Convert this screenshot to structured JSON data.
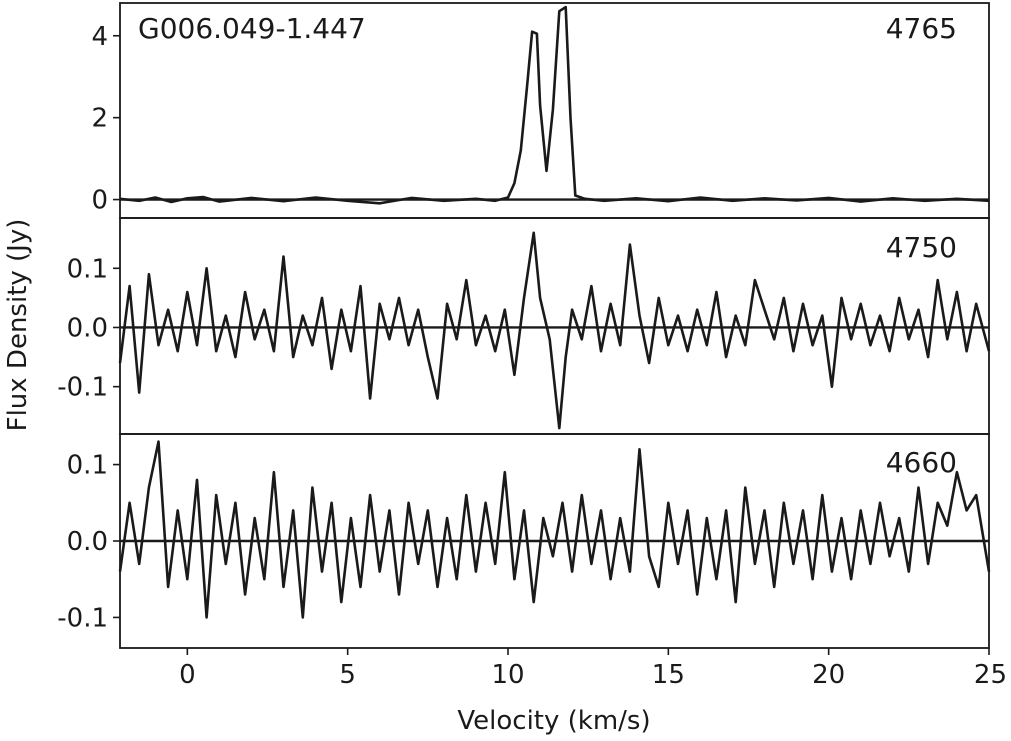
{
  "chart_data": {
    "type": "line",
    "source_name": "G006.049-1.447",
    "xlabel": "Velocity (km/s)",
    "ylabel": "Flux Density (Jy)",
    "xlim": [
      -2.1,
      25
    ],
    "x_ticks": [
      0,
      5,
      10,
      15,
      20,
      25
    ],
    "x_tick_labels": [
      "0",
      "5",
      "10",
      "15",
      "20",
      "25"
    ],
    "line_color": "#1a1a1a",
    "grid": false,
    "panels": [
      {
        "label": "4765",
        "ylim": [
          -0.45,
          4.8
        ],
        "y_ticks": [
          0,
          2,
          4
        ],
        "y_tick_labels": [
          "0",
          "2",
          "4"
        ],
        "x": [
          -2.1,
          -1.5,
          -1.0,
          -0.5,
          0.0,
          0.5,
          1.0,
          2.0,
          3.0,
          4.0,
          5.0,
          6.0,
          7.0,
          8.0,
          9.0,
          9.6,
          10.0,
          10.2,
          10.4,
          10.6,
          10.75,
          10.9,
          11.0,
          11.2,
          11.4,
          11.6,
          11.8,
          11.95,
          12.1,
          12.4,
          13.0,
          14.0,
          15.0,
          16.0,
          17.0,
          18.0,
          19.0,
          20.0,
          21.0,
          22.0,
          23.0,
          24.0,
          25.0
        ],
        "y": [
          0.02,
          -0.03,
          0.05,
          -0.06,
          0.03,
          0.06,
          -0.05,
          0.04,
          -0.04,
          0.05,
          -0.03,
          -0.09,
          0.04,
          -0.03,
          0.02,
          -0.03,
          0.05,
          0.4,
          1.2,
          2.8,
          4.1,
          4.05,
          2.3,
          0.7,
          2.2,
          4.6,
          4.7,
          2.0,
          0.1,
          0.02,
          -0.03,
          0.03,
          -0.04,
          0.05,
          -0.03,
          0.03,
          -0.02,
          0.04,
          -0.05,
          0.03,
          -0.03,
          0.02,
          -0.03
        ]
      },
      {
        "label": "4750",
        "ylim": [
          -0.18,
          0.185
        ],
        "y_ticks": [
          0.1,
          0.0,
          -0.1
        ],
        "y_tick_labels": [
          "0.1",
          "0.0",
          "-0.1"
        ],
        "x": [
          -2.1,
          -1.8,
          -1.5,
          -1.2,
          -0.9,
          -0.6,
          -0.3,
          0.0,
          0.3,
          0.6,
          0.9,
          1.2,
          1.5,
          1.8,
          2.1,
          2.4,
          2.7,
          3.0,
          3.3,
          3.6,
          3.9,
          4.2,
          4.5,
          4.8,
          5.1,
          5.4,
          5.7,
          6.0,
          6.3,
          6.6,
          6.9,
          7.2,
          7.5,
          7.8,
          8.1,
          8.4,
          8.7,
          9.0,
          9.3,
          9.6,
          9.9,
          10.2,
          10.5,
          10.8,
          11.0,
          11.3,
          11.6,
          11.8,
          12.0,
          12.3,
          12.6,
          12.9,
          13.2,
          13.5,
          13.8,
          14.1,
          14.4,
          14.7,
          15.0,
          15.3,
          15.6,
          15.9,
          16.2,
          16.5,
          16.8,
          17.1,
          17.4,
          17.7,
          18.0,
          18.3,
          18.6,
          18.9,
          19.2,
          19.5,
          19.8,
          20.1,
          20.4,
          20.7,
          21.0,
          21.3,
          21.6,
          21.9,
          22.2,
          22.5,
          22.8,
          23.1,
          23.4,
          23.7,
          24.0,
          24.3,
          24.6,
          25.0
        ],
        "y": [
          -0.06,
          0.07,
          -0.11,
          0.09,
          -0.03,
          0.03,
          -0.04,
          0.06,
          -0.03,
          0.1,
          -0.04,
          0.02,
          -0.05,
          0.06,
          -0.02,
          0.03,
          -0.04,
          0.12,
          -0.05,
          0.02,
          -0.03,
          0.05,
          -0.07,
          0.03,
          -0.04,
          0.07,
          -0.12,
          0.04,
          -0.02,
          0.05,
          -0.03,
          0.03,
          -0.05,
          -0.12,
          0.04,
          -0.02,
          0.08,
          -0.03,
          0.02,
          -0.04,
          0.03,
          -0.08,
          0.05,
          0.16,
          0.05,
          -0.02,
          -0.17,
          -0.05,
          0.03,
          -0.02,
          0.07,
          -0.04,
          0.04,
          -0.03,
          0.14,
          0.02,
          -0.06,
          0.05,
          -0.03,
          0.02,
          -0.04,
          0.03,
          -0.03,
          0.06,
          -0.05,
          0.02,
          -0.03,
          0.08,
          0.03,
          -0.02,
          0.05,
          -0.04,
          0.04,
          -0.03,
          0.02,
          -0.1,
          0.05,
          -0.02,
          0.04,
          -0.03,
          0.02,
          -0.04,
          0.05,
          -0.02,
          0.03,
          -0.05,
          0.08,
          -0.02,
          0.06,
          -0.04,
          0.04,
          -0.04
        ]
      },
      {
        "label": "4660",
        "ylim": [
          -0.14,
          0.14
        ],
        "y_ticks": [
          0.1,
          0.0,
          -0.1
        ],
        "y_tick_labels": [
          "0.1",
          "0.0",
          "-0.1"
        ],
        "x": [
          -2.1,
          -1.8,
          -1.5,
          -1.2,
          -0.9,
          -0.6,
          -0.3,
          0.0,
          0.3,
          0.6,
          0.9,
          1.2,
          1.5,
          1.8,
          2.1,
          2.4,
          2.7,
          3.0,
          3.3,
          3.6,
          3.9,
          4.2,
          4.5,
          4.8,
          5.1,
          5.4,
          5.7,
          6.0,
          6.3,
          6.6,
          6.9,
          7.2,
          7.5,
          7.8,
          8.1,
          8.4,
          8.7,
          9.0,
          9.3,
          9.6,
          9.9,
          10.2,
          10.5,
          10.8,
          11.1,
          11.4,
          11.7,
          12.0,
          12.3,
          12.6,
          12.9,
          13.2,
          13.5,
          13.8,
          14.1,
          14.4,
          14.7,
          15.0,
          15.3,
          15.6,
          15.9,
          16.2,
          16.5,
          16.8,
          17.1,
          17.4,
          17.7,
          18.0,
          18.3,
          18.6,
          18.9,
          19.2,
          19.5,
          19.8,
          20.1,
          20.4,
          20.7,
          21.0,
          21.3,
          21.6,
          21.9,
          22.2,
          22.5,
          22.8,
          23.1,
          23.4,
          23.7,
          24.0,
          24.3,
          24.6,
          25.0
        ],
        "y": [
          -0.04,
          0.05,
          -0.03,
          0.07,
          0.13,
          -0.06,
          0.04,
          -0.05,
          0.08,
          -0.1,
          0.06,
          -0.03,
          0.05,
          -0.07,
          0.03,
          -0.05,
          0.09,
          -0.06,
          0.04,
          -0.1,
          0.07,
          -0.04,
          0.05,
          -0.08,
          0.03,
          -0.06,
          0.06,
          -0.04,
          0.04,
          -0.07,
          0.05,
          -0.03,
          0.04,
          -0.06,
          0.03,
          -0.05,
          0.06,
          -0.04,
          0.05,
          -0.03,
          0.09,
          -0.05,
          0.04,
          -0.08,
          0.03,
          -0.02,
          0.05,
          -0.04,
          0.06,
          -0.03,
          0.04,
          -0.05,
          0.03,
          -0.04,
          0.12,
          -0.02,
          -0.06,
          0.05,
          -0.03,
          0.04,
          -0.07,
          0.03,
          -0.05,
          0.04,
          -0.08,
          0.07,
          -0.03,
          0.04,
          -0.06,
          0.05,
          -0.03,
          0.04,
          -0.05,
          0.06,
          -0.04,
          0.03,
          -0.05,
          0.04,
          -0.03,
          0.05,
          -0.02,
          0.03,
          -0.04,
          0.07,
          -0.03,
          0.05,
          0.02,
          0.09,
          0.04,
          0.06,
          -0.04
        ]
      }
    ]
  }
}
